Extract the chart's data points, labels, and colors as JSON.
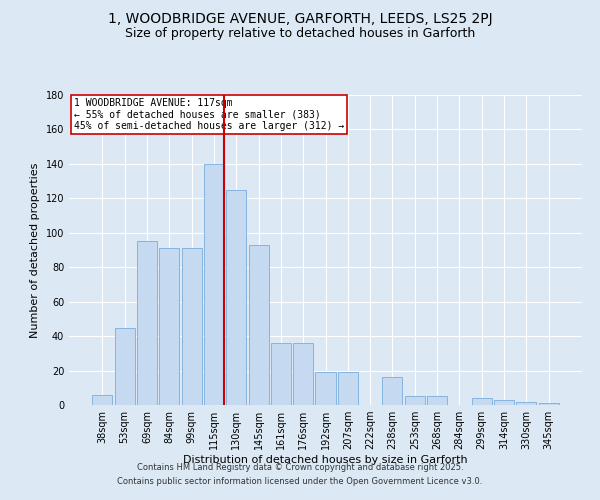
{
  "title_line1": "1, WOODBRIDGE AVENUE, GARFORTH, LEEDS, LS25 2PJ",
  "title_line2": "Size of property relative to detached houses in Garforth",
  "xlabel": "Distribution of detached houses by size in Garforth",
  "ylabel": "Number of detached properties",
  "categories": [
    "38sqm",
    "53sqm",
    "69sqm",
    "84sqm",
    "99sqm",
    "115sqm",
    "130sqm",
    "145sqm",
    "161sqm",
    "176sqm",
    "192sqm",
    "207sqm",
    "222sqm",
    "238sqm",
    "253sqm",
    "268sqm",
    "284sqm",
    "299sqm",
    "314sqm",
    "330sqm",
    "345sqm"
  ],
  "values": [
    6,
    45,
    95,
    91,
    91,
    140,
    125,
    93,
    36,
    36,
    19,
    19,
    0,
    16,
    5,
    5,
    0,
    4,
    3,
    2,
    1
  ],
  "bar_color": "#c5d9f0",
  "bar_edge_color": "#7aaddc",
  "vline_x_index": 5,
  "vline_color": "#cc0000",
  "annotation_text": "1 WOODBRIDGE AVENUE: 117sqm\n← 55% of detached houses are smaller (383)\n45% of semi-detached houses are larger (312) →",
  "annotation_box_color": "#ffffff",
  "annotation_box_edge": "#cc0000",
  "ylim": [
    0,
    180
  ],
  "yticks": [
    0,
    20,
    40,
    60,
    80,
    100,
    120,
    140,
    160,
    180
  ],
  "background_color": "#dce9f5",
  "plot_bg_color": "#dce9f5",
  "grid_color": "#ffffff",
  "footer_line1": "Contains HM Land Registry data © Crown copyright and database right 2025.",
  "footer_line2": "Contains public sector information licensed under the Open Government Licence v3.0.",
  "title_fontsize": 10,
  "subtitle_fontsize": 9,
  "axis_label_fontsize": 8,
  "tick_fontsize": 7
}
